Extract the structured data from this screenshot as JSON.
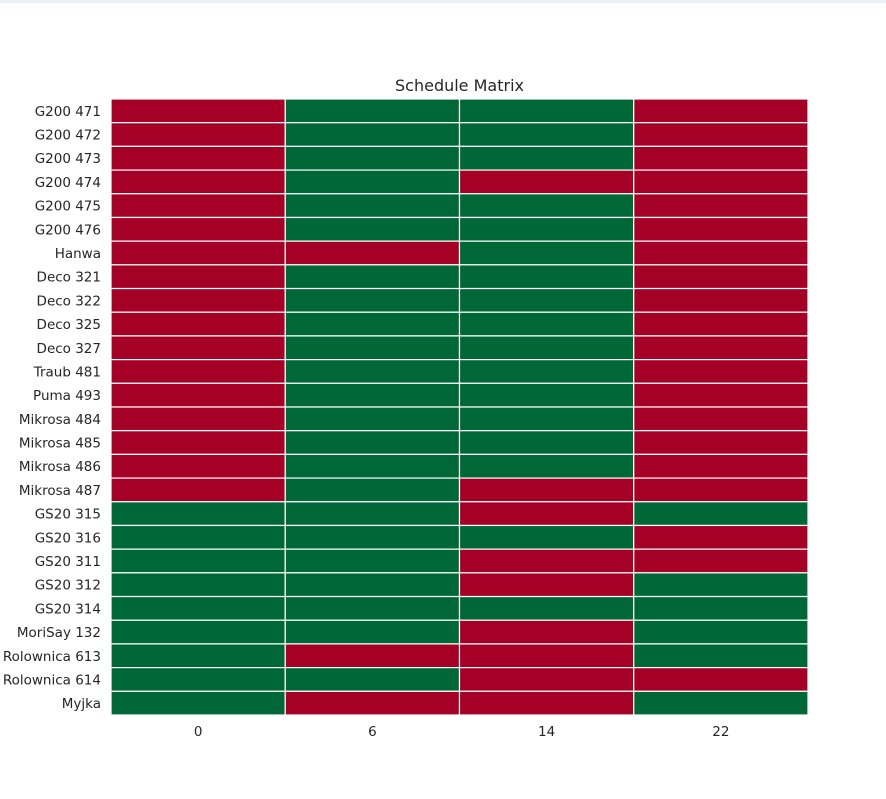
{
  "chart_data": {
    "type": "heatmap",
    "title": "Schedule Matrix",
    "columns": [
      "0",
      "6",
      "14",
      "22"
    ],
    "rows": [
      "G200 471",
      "G200 472",
      "G200 473",
      "G200 474",
      "G200 475",
      "G200 476",
      "Hanwa",
      "Deco 321",
      "Deco 322",
      "Deco 325",
      "Deco 327",
      "Traub 481",
      "Puma 493",
      "Mikrosa 484",
      "Mikrosa 485",
      "Mikrosa 486",
      "Mikrosa 487",
      "GS20 315",
      "GS20 316",
      "GS20 311",
      "GS20 312",
      "GS20 314",
      "MoriSay 132",
      "Rolownica 613",
      "Rolownica 614",
      "Myjka"
    ],
    "values": [
      [
        0,
        1,
        1,
        0
      ],
      [
        0,
        1,
        1,
        0
      ],
      [
        0,
        1,
        1,
        0
      ],
      [
        0,
        1,
        0,
        0
      ],
      [
        0,
        1,
        1,
        0
      ],
      [
        0,
        1,
        1,
        0
      ],
      [
        0,
        0,
        1,
        0
      ],
      [
        0,
        1,
        1,
        0
      ],
      [
        0,
        1,
        1,
        0
      ],
      [
        0,
        1,
        1,
        0
      ],
      [
        0,
        1,
        1,
        0
      ],
      [
        0,
        1,
        1,
        0
      ],
      [
        0,
        1,
        1,
        0
      ],
      [
        0,
        1,
        1,
        0
      ],
      [
        0,
        1,
        1,
        0
      ],
      [
        0,
        1,
        1,
        0
      ],
      [
        0,
        1,
        0,
        0
      ],
      [
        1,
        1,
        0,
        1
      ],
      [
        1,
        1,
        1,
        0
      ],
      [
        1,
        1,
        0,
        0
      ],
      [
        1,
        1,
        0,
        1
      ],
      [
        1,
        1,
        1,
        1
      ],
      [
        1,
        1,
        0,
        1
      ],
      [
        1,
        0,
        0,
        1
      ],
      [
        1,
        1,
        0,
        0
      ],
      [
        1,
        0,
        0,
        1
      ]
    ],
    "colors": {
      "0": "#a50026",
      "1": "#006837",
      "grid": "#ffffff"
    },
    "grid": true,
    "legend": "none"
  }
}
